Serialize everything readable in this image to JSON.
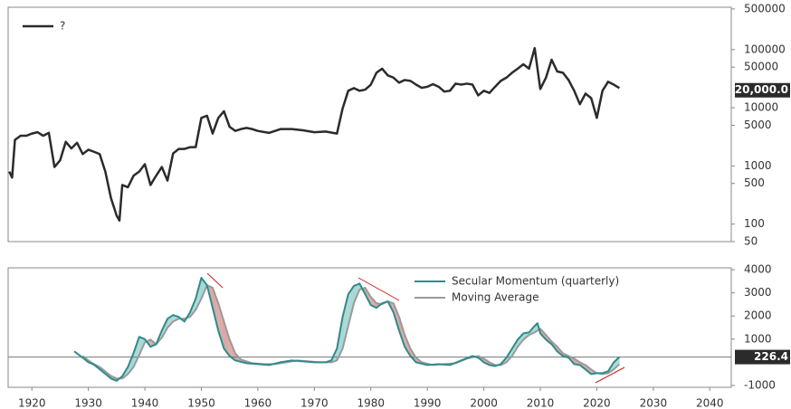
{
  "chart_data": [
    {
      "type": "line",
      "log_scale": true,
      "legend": "upper left",
      "xlim": [
        1915.8,
        2043.8
      ],
      "ylim": [
        50,
        535000
      ],
      "yticks": [
        50,
        100,
        500,
        1000,
        5000,
        10000,
        50000,
        100000,
        500000
      ],
      "current_value": {
        "value": 20000,
        "label": "20,000.0"
      },
      "series": [
        {
          "name": "?",
          "color": "#2b2b2b",
          "x": [
            1916,
            1916.5,
            1917,
            1918,
            1919,
            1920,
            1921,
            1922,
            1923,
            1924,
            1925,
            1926,
            1927,
            1928,
            1929,
            1930,
            1931,
            1932,
            1933,
            1934,
            1935,
            1935.5,
            1936,
            1937,
            1938,
            1939,
            1940,
            1941,
            1942,
            1943,
            1944,
            1945,
            1946,
            1947,
            1948,
            1949,
            1950,
            1951,
            1952,
            1953,
            1954,
            1955,
            1956,
            1957,
            1958,
            1959,
            1960,
            1962,
            1964,
            1966,
            1968,
            1970,
            1972,
            1974,
            1975,
            1976,
            1977,
            1978,
            1979,
            1980,
            1981,
            1982,
            1983,
            1984,
            1985,
            1986,
            1987,
            1988,
            1989,
            1990,
            1991,
            1992,
            1993,
            1994,
            1995,
            1996,
            1997,
            1998,
            1999,
            2000,
            2001,
            2002,
            2003,
            2004,
            2005,
            2006,
            2007,
            2008,
            2009,
            2009.5,
            2010,
            2011,
            2012,
            2013,
            2014,
            2015,
            2016,
            2017,
            2018,
            2019,
            2020,
            2021,
            2022,
            2023,
            2024
          ],
          "values": [
            800,
            630,
            2800,
            3300,
            3300,
            3600,
            3800,
            3300,
            3700,
            960,
            1250,
            2600,
            2000,
            2500,
            1600,
            1900,
            1750,
            1600,
            800,
            280,
            140,
            115,
            470,
            430,
            680,
            800,
            1070,
            470,
            680,
            960,
            560,
            1640,
            1960,
            1960,
            2100,
            2100,
            6700,
            7300,
            3600,
            6700,
            8700,
            4700,
            4000,
            4300,
            4500,
            4300,
            4000,
            3700,
            4300,
            4300,
            4100,
            3800,
            3900,
            3600,
            9700,
            19600,
            21800,
            19600,
            20500,
            25000,
            40000,
            47000,
            36000,
            33000,
            27000,
            30000,
            29000,
            25000,
            22000,
            23000,
            25500,
            23000,
            19000,
            19600,
            26000,
            25000,
            26000,
            25000,
            16300,
            19600,
            18000,
            23000,
            29000,
            33000,
            40000,
            47000,
            56000,
            47000,
            106000,
            47000,
            21000,
            33000,
            67000,
            42000,
            40000,
            30000,
            19600,
            11500,
            17500,
            14700,
            6700,
            19600,
            28000,
            25000,
            21800
          ]
        }
      ]
    },
    {
      "type": "line",
      "legend": "upper center",
      "xlim": [
        1915.8,
        2043.8
      ],
      "ylim": [
        -1080,
        4080
      ],
      "xticks": [
        1920,
        1930,
        1940,
        1950,
        1960,
        1970,
        1980,
        1990,
        2000,
        2010,
        2020,
        2030,
        2040
      ],
      "yticks": [
        -1000,
        1000,
        2000,
        3000,
        4000
      ],
      "current_value": 226.4,
      "fill_colors": {
        "above": "#a9d6d3",
        "below": "#dba6a3"
      },
      "series": [
        {
          "name": "Secular Momentum (quarterly)",
          "color": "#2e8b8b",
          "x": [
            1927.5,
            1929,
            1930,
            1931,
            1932,
            1933,
            1934,
            1935,
            1936,
            1937,
            1938,
            1939,
            1940,
            1941,
            1942,
            1943,
            1944,
            1945,
            1946,
            1947,
            1948,
            1949,
            1950,
            1951,
            1952,
            1953,
            1954,
            1955,
            1956,
            1958,
            1960,
            1962,
            1964,
            1966,
            1968,
            1970,
            1972,
            1973,
            1974,
            1975,
            1976,
            1977,
            1978,
            1979,
            1980,
            1981,
            1982,
            1983,
            1984,
            1985,
            1986,
            1987,
            1988,
            1990,
            1992,
            1994,
            1996,
            1998,
            1999,
            2000,
            2001,
            2002,
            2003,
            2004,
            2005,
            2006,
            2007,
            2008,
            2009,
            2009.5,
            2010,
            2011,
            2012,
            2013,
            2014,
            2015,
            2016,
            2017,
            2018,
            2019,
            2020,
            2021,
            2022,
            2023,
            2024
          ],
          "values": [
            470,
            200,
            0,
            -100,
            -300,
            -500,
            -700,
            -800,
            -600,
            -200,
            400,
            1100,
            1000,
            670,
            780,
            1370,
            1880,
            2040,
            1960,
            1760,
            2160,
            2750,
            3650,
            3330,
            2350,
            1370,
            590,
            270,
            80,
            -40,
            -80,
            -120,
            0,
            80,
            40,
            0,
            0,
            80,
            590,
            1960,
            2940,
            3300,
            3400,
            2940,
            2470,
            2350,
            2550,
            2630,
            2160,
            1370,
            670,
            270,
            0,
            -120,
            -80,
            -120,
            80,
            270,
            200,
            0,
            -120,
            -160,
            -80,
            200,
            590,
            980,
            1250,
            1290,
            1570,
            1690,
            1250,
            980,
            780,
            470,
            270,
            200,
            -80,
            -120,
            -310,
            -510,
            -470,
            -470,
            -390,
            0,
            226.4
          ]
        },
        {
          "name": "Moving Average",
          "color": "#9a9a9a",
          "x": [
            1929,
            1930,
            1931,
            1932,
            1933,
            1934,
            1935,
            1936,
            1937,
            1938,
            1939,
            1940,
            1941,
            1942,
            1943,
            1944,
            1945,
            1946,
            1947,
            1948,
            1949,
            1950,
            1951,
            1952,
            1953,
            1954,
            1955,
            1956,
            1957,
            1959,
            1961,
            1963,
            1965,
            1967,
            1969,
            1971,
            1973,
            1974,
            1975,
            1976,
            1977,
            1978,
            1979,
            1980,
            1981,
            1982,
            1983,
            1984,
            1985,
            1986,
            1987,
            1988,
            1989,
            1991,
            1993,
            1995,
            1997,
            1999,
            2000,
            2001,
            2002,
            2003,
            2004,
            2005,
            2006,
            2007,
            2008,
            2009,
            2010,
            2011,
            2012,
            2013,
            2014,
            2015,
            2016,
            2017,
            2018,
            2019,
            2020,
            2021,
            2022,
            2023,
            2024
          ],
          "values": [
            270,
            80,
            -80,
            -200,
            -390,
            -590,
            -700,
            -700,
            -510,
            -200,
            310,
            860,
            980,
            780,
            1060,
            1490,
            1760,
            1880,
            1880,
            1960,
            2270,
            2750,
            3330,
            3220,
            2550,
            1760,
            980,
            390,
            120,
            -40,
            -80,
            -80,
            0,
            80,
            40,
            0,
            0,
            80,
            590,
            1570,
            2550,
            3140,
            3220,
            2820,
            2550,
            2510,
            2630,
            2550,
            1960,
            1180,
            590,
            200,
            0,
            -120,
            -80,
            -40,
            160,
            270,
            160,
            0,
            -120,
            -120,
            0,
            270,
            670,
            980,
            1180,
            1290,
            1450,
            1180,
            900,
            670,
            390,
            270,
            160,
            0,
            -120,
            -310,
            -470,
            -510,
            -470,
            -310,
            -80
          ]
        }
      ]
    }
  ]
}
